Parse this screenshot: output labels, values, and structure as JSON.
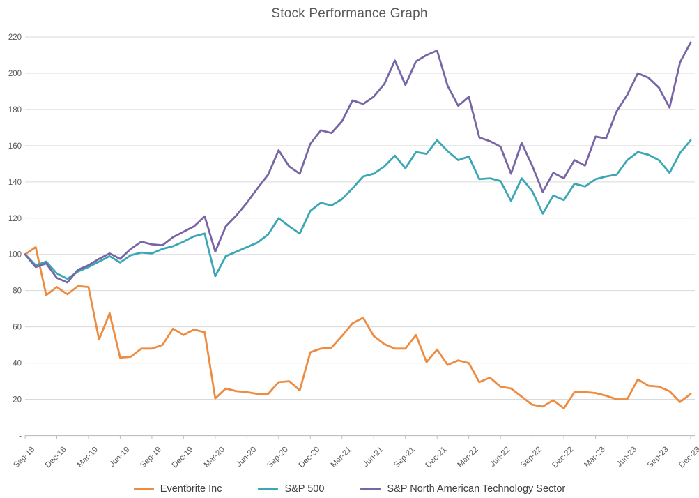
{
  "title": "Stock Performance Graph",
  "colors": {
    "background": "#ffffff",
    "gridline": "#d9d9d9",
    "axis_line": "#bfbfbf",
    "title_text": "#595959",
    "axis_text": "#595959",
    "legend_text": "#404040",
    "eventbrite_orange": "#ed8c40",
    "sp500_teal": "#3ba6b5",
    "tech_sector_purple": "#7765a5"
  },
  "legend": {
    "items": [
      {
        "label": "Eventbrite Inc",
        "color": "#ed8c40"
      },
      {
        "label": "S&P 500",
        "color": "#3ba6b5"
      },
      {
        "label": "S&P North American Technology Sector",
        "color": "#7765a5"
      }
    ]
  },
  "y_axis": {
    "zero_label": "-",
    "tick_labels": [
      "-",
      "20",
      "40",
      "60",
      "80",
      "100",
      "120",
      "140",
      "160",
      "180",
      "200",
      "220"
    ]
  },
  "x_axis": {
    "shown_tick_labels": [
      "Sep-18",
      "Dec-18",
      "Mar-19",
      "Jun-19",
      "Sep-19",
      "Dec-19",
      "Mar-20",
      "Jun-20",
      "Sep-20",
      "Dec-20",
      "Mar-21",
      "Jun-21",
      "Sep-21",
      "Dec-21",
      "Mar-22",
      "Jun-22",
      "Sep-22",
      "Dec-22",
      "Mar-23",
      "Jun-23",
      "Sep-23",
      "Dec-23"
    ]
  },
  "chart_data": {
    "type": "line",
    "title": "Stock Performance Graph",
    "xlabel": "",
    "ylabel": "",
    "ylim": [
      0,
      220
    ],
    "y_tick_step": 20,
    "grid": true,
    "legend_position": "bottom",
    "x_tick_step": 3,
    "x": [
      "Sep-18",
      "Oct-18",
      "Nov-18",
      "Dec-18",
      "Jan-19",
      "Feb-19",
      "Mar-19",
      "Apr-19",
      "May-19",
      "Jun-19",
      "Jul-19",
      "Aug-19",
      "Sep-19",
      "Oct-19",
      "Nov-19",
      "Dec-19",
      "Jan-20",
      "Feb-20",
      "Mar-20",
      "Apr-20",
      "May-20",
      "Jun-20",
      "Jul-20",
      "Aug-20",
      "Sep-20",
      "Oct-20",
      "Nov-20",
      "Dec-20",
      "Jan-21",
      "Feb-21",
      "Mar-21",
      "Apr-21",
      "May-21",
      "Jun-21",
      "Jul-21",
      "Aug-21",
      "Sep-21",
      "Oct-21",
      "Nov-21",
      "Dec-21",
      "Jan-22",
      "Feb-22",
      "Mar-22",
      "Apr-22",
      "May-22",
      "Jun-22",
      "Jul-22",
      "Aug-22",
      "Sep-22",
      "Oct-22",
      "Nov-22",
      "Dec-22",
      "Jan-23",
      "Feb-23",
      "Mar-23",
      "Apr-23",
      "May-23",
      "Jun-23",
      "Jul-23",
      "Aug-23",
      "Sep-23",
      "Oct-23",
      "Nov-23",
      "Dec-23"
    ],
    "series": [
      {
        "name": "Eventbrite Inc",
        "color": "#ed8c40",
        "values": [
          100,
          104,
          77.5,
          82,
          78,
          82.5,
          82,
          53,
          67.5,
          43,
          43.5,
          48,
          48,
          50,
          59,
          55.5,
          58.5,
          57,
          20.5,
          26,
          24.5,
          24,
          23,
          23,
          29.5,
          30,
          25,
          46,
          48,
          48.5,
          55,
          62,
          65,
          55,
          50.5,
          48,
          48,
          55.5,
          40.5,
          47.5,
          39,
          41.5,
          40,
          29.5,
          32,
          27,
          26,
          21.5,
          17,
          16,
          19.5,
          15,
          24,
          24,
          23.5,
          22,
          20,
          20,
          31,
          27.5,
          27,
          24.5,
          18.5,
          23
        ]
      },
      {
        "name": "S&P 500",
        "color": "#3ba6b5",
        "values": [
          100,
          94,
          96,
          89.5,
          86.5,
          90.5,
          93,
          96,
          99,
          95.5,
          99.5,
          101,
          100.5,
          103,
          104.5,
          107,
          110,
          111.5,
          88,
          99,
          101.5,
          104,
          106.5,
          111,
          120,
          115.5,
          111.5,
          124,
          128.5,
          127,
          130.5,
          136.5,
          143,
          144.5,
          148.5,
          154.5,
          147.5,
          156.5,
          155.5,
          163,
          157,
          152,
          154,
          141.5,
          142,
          140.5,
          129.5,
          142,
          135,
          122.5,
          132.5,
          130,
          139,
          137.5,
          141.5,
          143,
          144,
          152,
          156.5,
          155,
          152,
          145,
          156,
          163
        ]
      },
      {
        "name": "S&P North American Technology Sector",
        "color": "#7765a5",
        "values": [
          100,
          93,
          95,
          87,
          84.5,
          91.5,
          94,
          97.5,
          100.5,
          97.5,
          103,
          107,
          105.5,
          105,
          109.5,
          112.5,
          115.5,
          121,
          101.5,
          115.5,
          121.5,
          128.5,
          136.5,
          144,
          157.5,
          148.5,
          144.5,
          161,
          168.5,
          167,
          173.5,
          185,
          183,
          187,
          194,
          207,
          193.5,
          206.5,
          210,
          212.5,
          193,
          182,
          187,
          164.5,
          162.5,
          159.5,
          144.5,
          161.5,
          149,
          134.5,
          145,
          142,
          152,
          149,
          165,
          164,
          179,
          188,
          200,
          197.5,
          192,
          181,
          206,
          217
        ]
      }
    ]
  }
}
